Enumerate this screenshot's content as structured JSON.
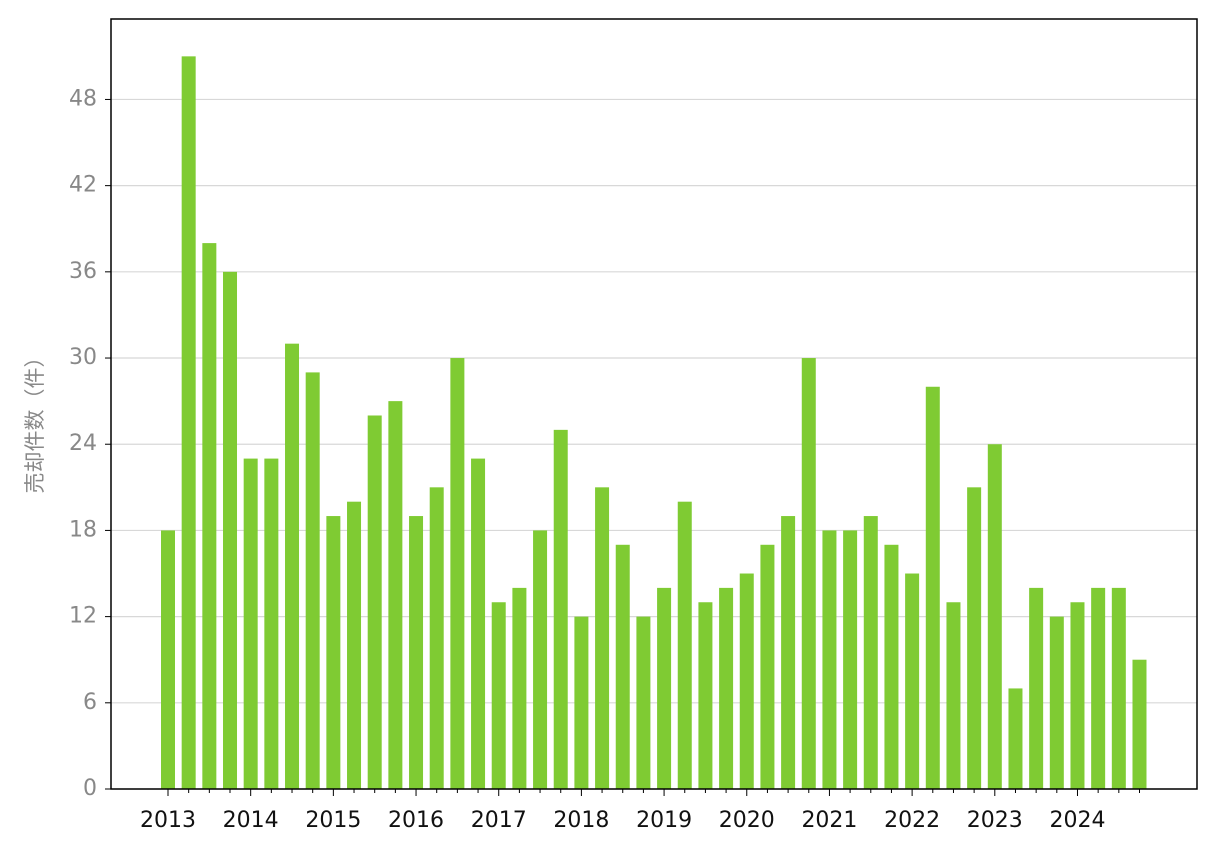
{
  "chart_data": {
    "type": "bar",
    "y_label": "売却件数（件）",
    "categories": [
      "2013",
      null,
      null,
      null,
      "2014",
      null,
      null,
      null,
      "2015",
      null,
      null,
      null,
      "2016",
      null,
      null,
      null,
      "2017",
      null,
      null,
      null,
      "2018",
      null,
      null,
      null,
      "2019",
      null,
      null,
      null,
      "2020",
      null,
      null,
      null,
      "2021",
      null,
      null,
      null,
      "2022",
      null,
      null,
      null,
      "2023",
      null,
      null,
      null,
      "2024",
      null,
      null,
      null
    ],
    "values": [
      18,
      51,
      38,
      36,
      23,
      23,
      31,
      29,
      19,
      20,
      26,
      27,
      19,
      21,
      30,
      23,
      13,
      14,
      18,
      25,
      12,
      21,
      17,
      12,
      14,
      20,
      13,
      14,
      15,
      17,
      19,
      30,
      18,
      18,
      19,
      17,
      15,
      28,
      13,
      21,
      24,
      7,
      14,
      12,
      13,
      14,
      14,
      9
    ],
    "color": "#7fcb33",
    "ylim": [
      0,
      53.6
    ],
    "yticks": [
      0,
      6,
      12,
      18,
      24,
      30,
      36,
      42,
      48
    ],
    "grid": true
  }
}
